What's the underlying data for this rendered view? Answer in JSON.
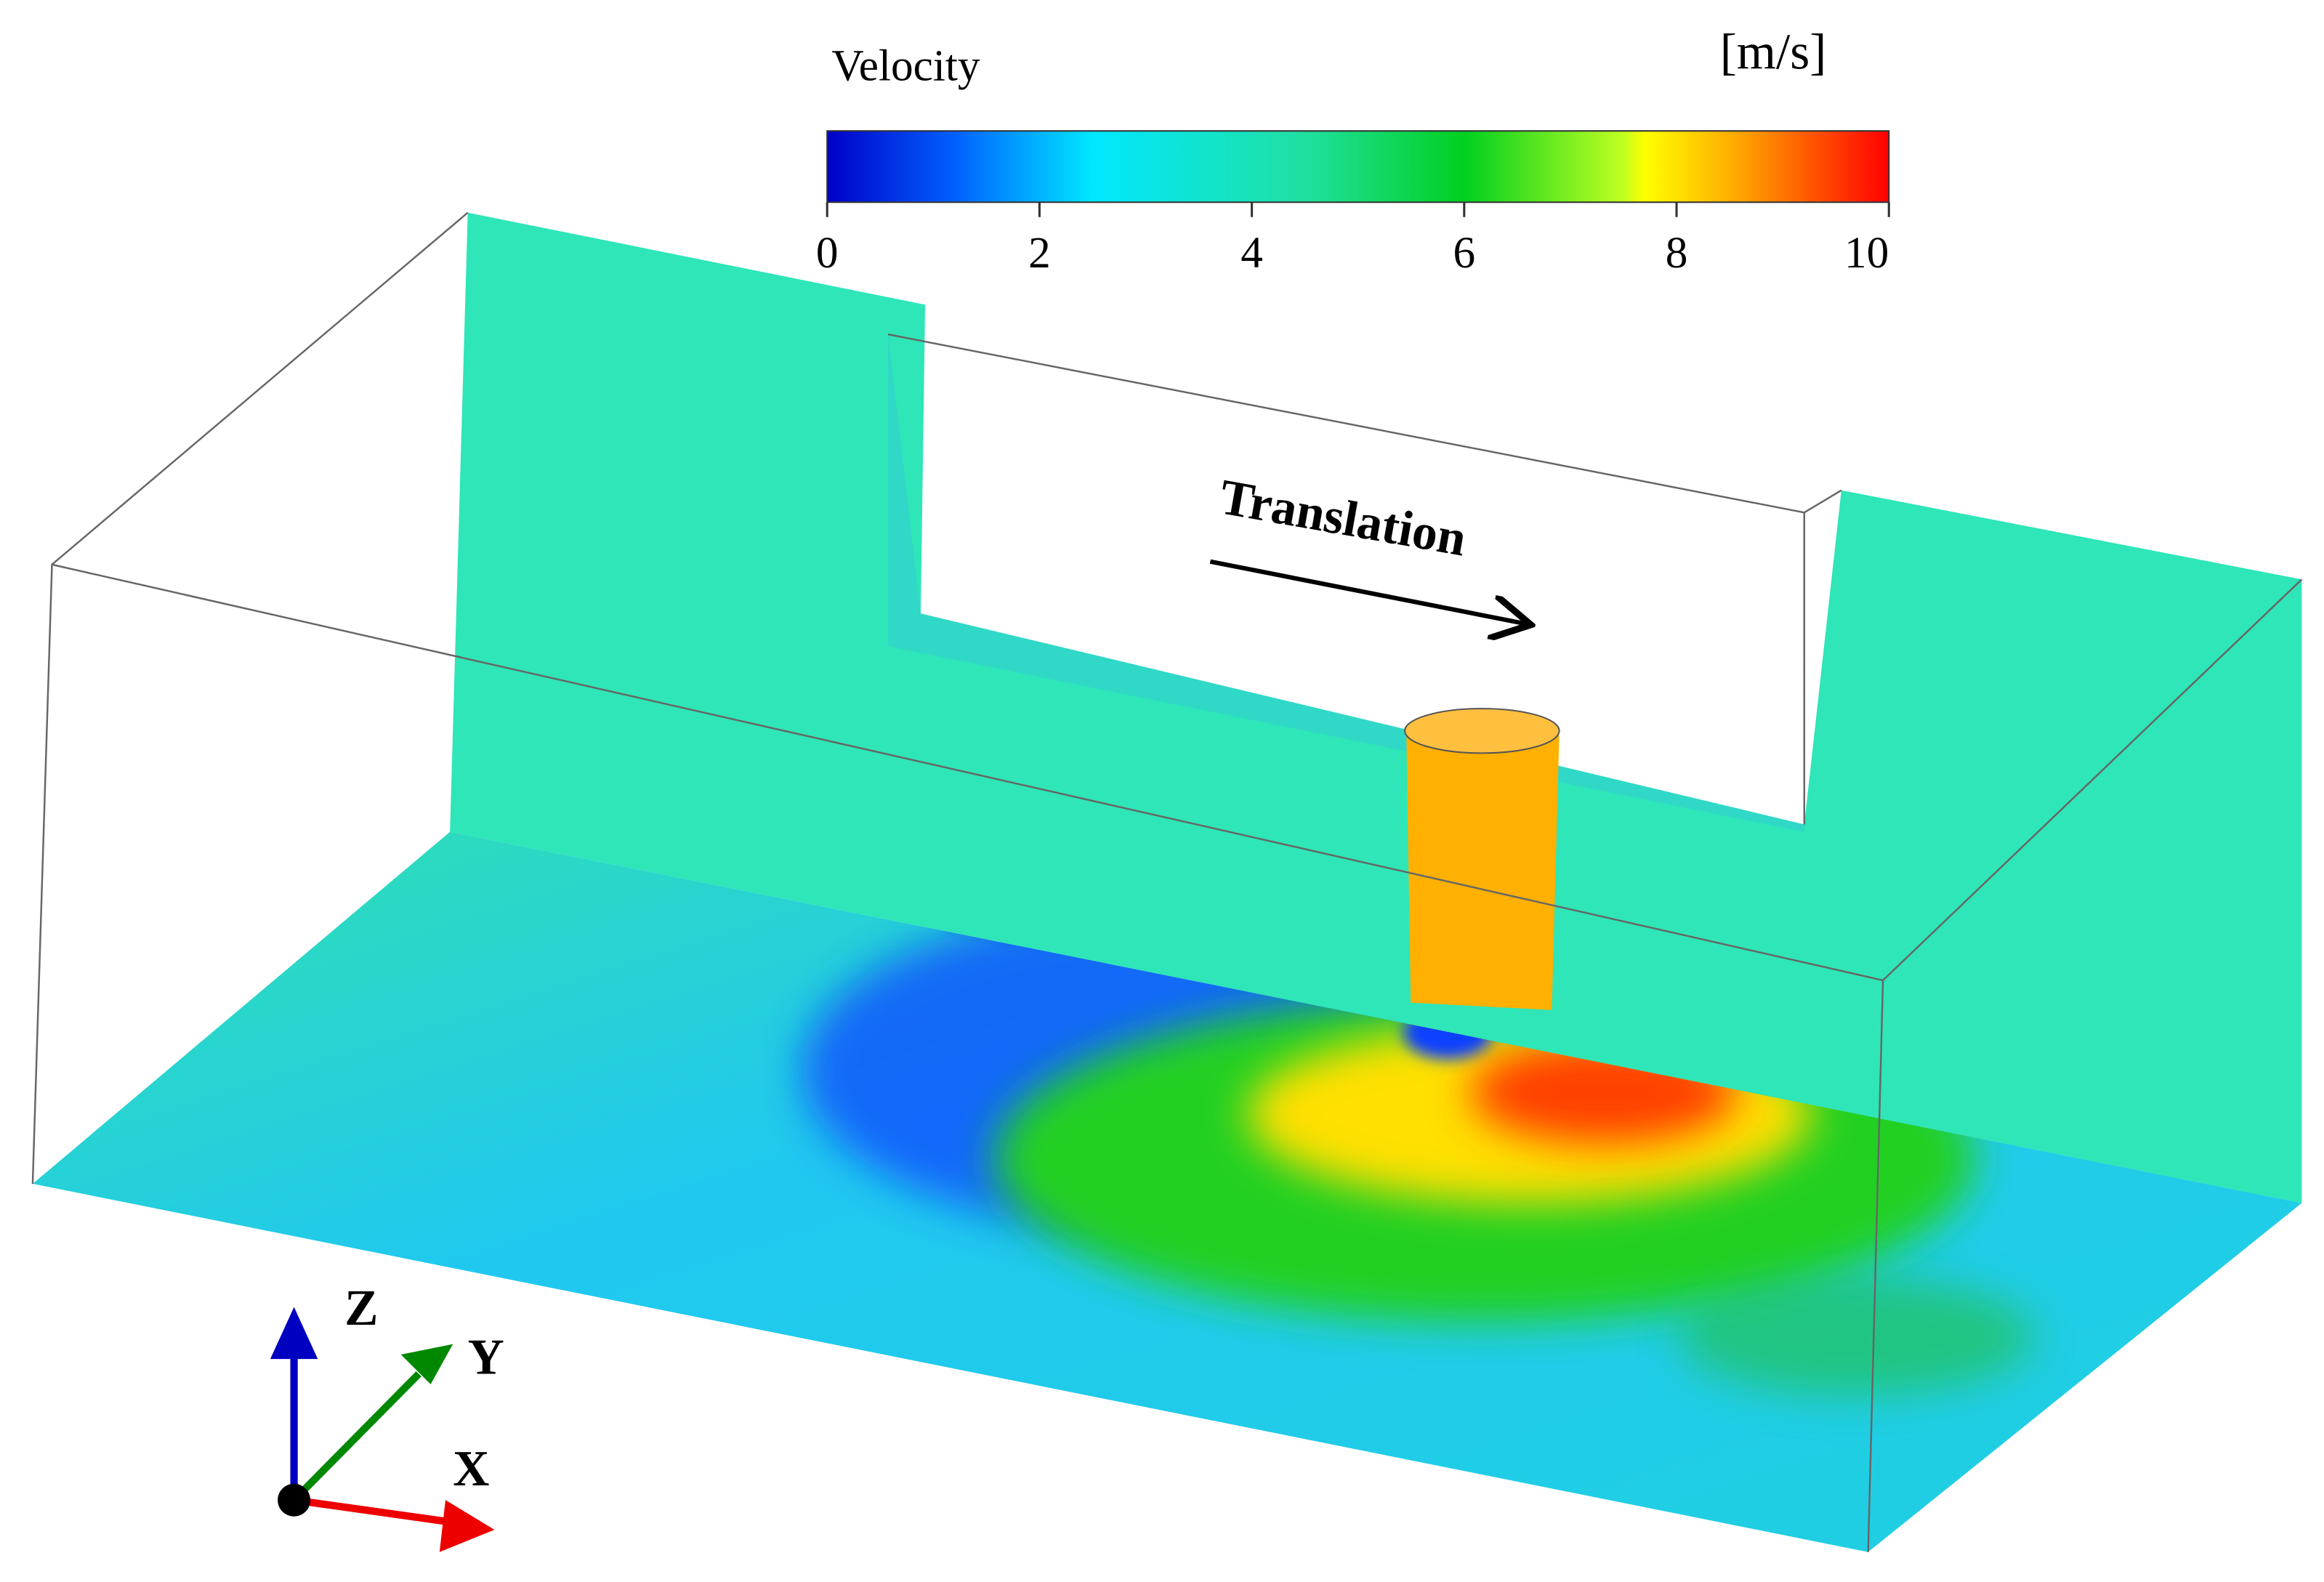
{
  "colorbar": {
    "title": "Velocity",
    "unit": "[m/s]",
    "lim": [
      0,
      10
    ],
    "ticks": [
      0,
      2,
      4,
      6,
      8,
      10
    ]
  },
  "annotation": "Translation",
  "axes": {
    "z": "Z",
    "y": "Y",
    "x": "X"
  }
}
